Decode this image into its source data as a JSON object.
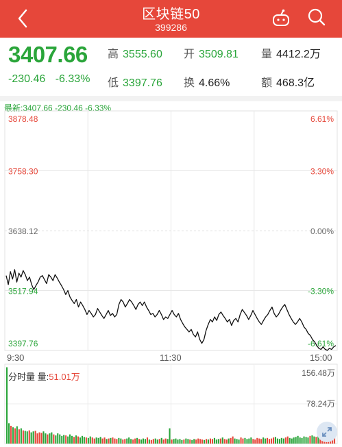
{
  "header": {
    "title": "区块链50",
    "code": "399286"
  },
  "quote": {
    "price": "3407.66",
    "change": "-230.46",
    "change_pct": "-6.33%",
    "high_label": "高",
    "high": "3555.60",
    "low_label": "低",
    "low": "3397.76",
    "open_label": "开",
    "open": "3509.81",
    "turnover_label": "换",
    "turnover": "4.66%",
    "volume_label": "量",
    "volume": "4412.2万",
    "amount_label": "额",
    "amount": "468.3亿"
  },
  "latest_line": "最新:3407.66 -230.46 -6.33%",
  "time_labels": [
    "9:30",
    "11:30",
    "15:00"
  ],
  "volume_panel": {
    "tag_label": "分时量",
    "vol_label": "量:",
    "vol_value": "51.01万",
    "max": "156.48万",
    "mid": "78.24万"
  },
  "colors": {
    "up": "#e6473a",
    "down": "#2aa53a",
    "header_bg": "#e6473a"
  },
  "chart_data": {
    "type": "line",
    "y_left_ticks": [
      "3878.48",
      "3758.30",
      "3638.12",
      "3517.94",
      "3397.76"
    ],
    "y_right_ticks": [
      "6.61%",
      "3.30%",
      "0.00%",
      "-3.30%",
      "-6.61%"
    ],
    "ylim": [
      3397.76,
      3878.48
    ],
    "prev_close": 3638.12,
    "x_ticks": [
      "9:30",
      "11:30",
      "15:00"
    ],
    "price_series": [
      3548,
      3530,
      3556,
      3541,
      3560,
      3535,
      3553,
      3545,
      3558,
      3550,
      3538,
      3545,
      3530,
      3520,
      3528,
      3535,
      3545,
      3548,
      3540,
      3532,
      3550,
      3545,
      3538,
      3550,
      3543,
      3535,
      3528,
      3520,
      3510,
      3518,
      3505,
      3498,
      3492,
      3500,
      3485,
      3495,
      3488,
      3480,
      3470,
      3478,
      3472,
      3465,
      3470,
      3482,
      3475,
      3468,
      3462,
      3470,
      3478,
      3468,
      3472,
      3465,
      3470,
      3490,
      3500,
      3495,
      3485,
      3492,
      3500,
      3495,
      3488,
      3480,
      3490,
      3495,
      3488,
      3495,
      3485,
      3478,
      3470,
      3472,
      3465,
      3470,
      3478,
      3470,
      3460,
      3465,
      3462,
      3470,
      3478,
      3470,
      3465,
      3472,
      3460,
      3452,
      3445,
      3440,
      3435,
      3440,
      3430,
      3425,
      3435,
      3420,
      3412,
      3420,
      3438,
      3450,
      3460,
      3455,
      3465,
      3458,
      3470,
      3475,
      3468,
      3462,
      3455,
      3460,
      3448,
      3458,
      3462,
      3455,
      3470,
      3480,
      3474,
      3468,
      3460,
      3468,
      3478,
      3470,
      3462,
      3455,
      3450,
      3458,
      3465,
      3470,
      3478,
      3485,
      3472,
      3465,
      3470,
      3478,
      3485,
      3490,
      3480,
      3470,
      3462,
      3455,
      3450,
      3455,
      3462,
      3455,
      3445,
      3440,
      3432,
      3428,
      3420,
      3415,
      3408,
      3402,
      3400,
      3405,
      3400,
      3398,
      3402,
      3400,
      3405,
      3407.66
    ],
    "volume_bars": [
      150,
      40,
      35,
      32,
      30,
      34,
      28,
      30,
      26,
      25,
      24,
      26,
      22,
      24,
      25,
      20,
      22,
      21,
      24,
      20,
      18,
      20,
      22,
      18,
      16,
      20,
      18,
      15,
      17,
      16,
      14,
      18,
      15,
      13,
      16,
      14,
      12,
      15,
      13,
      12,
      11,
      14,
      12,
      10,
      12,
      11,
      13,
      10,
      12,
      9,
      10,
      11,
      12,
      10,
      9,
      11,
      10,
      8,
      9,
      10,
      12,
      9,
      8,
      10,
      11,
      9,
      8,
      10,
      9,
      12,
      8,
      7,
      9,
      10,
      8,
      9,
      11,
      8,
      10,
      9,
      30,
      8,
      9,
      10,
      8,
      9,
      7,
      8,
      10,
      9,
      8,
      7,
      9,
      8,
      10,
      9,
      8,
      7,
      9,
      8,
      10,
      9,
      11,
      8,
      9,
      10,
      12,
      9,
      8,
      10,
      11,
      14,
      10,
      9,
      8,
      12,
      10,
      11,
      9,
      10,
      12,
      9,
      8,
      11,
      10,
      9,
      12,
      10,
      11,
      9,
      10,
      12,
      13,
      10,
      9,
      11,
      10,
      12,
      14,
      11,
      10,
      12,
      13,
      15,
      12,
      11,
      14,
      13,
      12,
      15,
      16,
      14,
      13,
      18,
      15,
      20,
      17,
      19,
      16,
      22,
      28,
      24
    ]
  }
}
